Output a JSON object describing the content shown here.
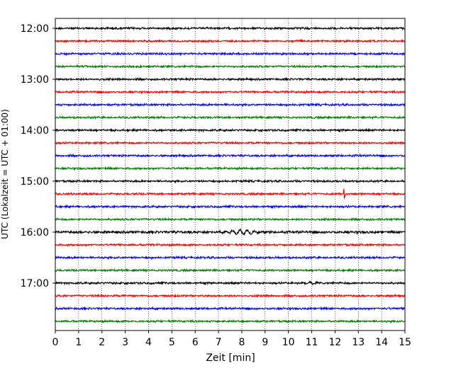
{
  "chart_data": {
    "type": "line",
    "title": "",
    "xlabel": "Zeit  [min]",
    "ylabel": "UTC (Lokalzeit = UTC + 01:00)",
    "xlim": [
      0,
      15
    ],
    "x_ticks": [
      "0",
      "1",
      "2",
      "3",
      "4",
      "5",
      "6",
      "7",
      "8",
      "9",
      "10",
      "11",
      "12",
      "13",
      "14",
      "15"
    ],
    "y_ticks": [
      "12:00",
      "13:00",
      "14:00",
      "15:00",
      "16:00",
      "17:00"
    ],
    "grid": "vertical dotted lines at each minute",
    "trace_colors": [
      "#000000",
      "#ff0000",
      "#0000ff",
      "#008000"
    ],
    "traces": [
      {
        "start": "12:00",
        "amp": 1.0
      },
      {
        "start": "12:15",
        "amp": 1.0
      },
      {
        "start": "12:30",
        "amp": 1.0
      },
      {
        "start": "12:45",
        "amp": 1.0
      },
      {
        "start": "13:00",
        "amp": 1.0
      },
      {
        "start": "13:15",
        "amp": 1.0
      },
      {
        "start": "13:30",
        "amp": 1.0
      },
      {
        "start": "13:45",
        "amp": 1.0
      },
      {
        "start": "14:00",
        "amp": 1.0
      },
      {
        "start": "14:15",
        "amp": 1.0
      },
      {
        "start": "14:30",
        "amp": 1.0
      },
      {
        "start": "14:45",
        "amp": 1.0
      },
      {
        "start": "15:00",
        "amp": 1.0
      },
      {
        "start": "15:15",
        "amp": 1.0,
        "events": [
          {
            "t": 12.4,
            "kind": "spike",
            "amp": 9
          }
        ]
      },
      {
        "start": "15:30",
        "amp": 1.0
      },
      {
        "start": "15:45",
        "amp": 1.0
      },
      {
        "start": "16:00",
        "amp": 1.3,
        "events": [
          {
            "t": 8.0,
            "kind": "wave",
            "amp": 3.5,
            "width": 1.0
          }
        ]
      },
      {
        "start": "16:15",
        "amp": 1.0
      },
      {
        "start": "16:30",
        "amp": 1.0
      },
      {
        "start": "16:45",
        "amp": 1.0
      },
      {
        "start": "17:00",
        "amp": 1.0,
        "events": [
          {
            "t": 11.0,
            "kind": "wave",
            "amp": 2.0,
            "width": 0.4
          }
        ]
      },
      {
        "start": "17:15",
        "amp": 1.0
      },
      {
        "start": "17:30",
        "amp": 1.0
      },
      {
        "start": "17:45",
        "amp": 1.0
      }
    ]
  }
}
